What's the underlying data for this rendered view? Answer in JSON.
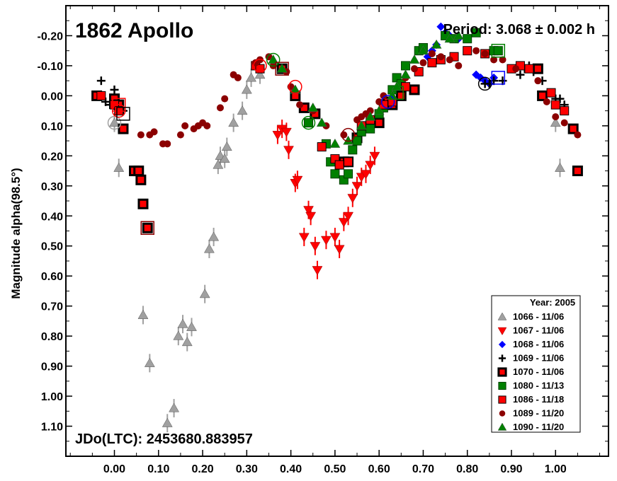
{
  "chart_data": {
    "type": "scatter",
    "title": "1862 Apollo",
    "period_text": "Period: 3.068 ± 0.002 h",
    "jd_text": "JDo(LTC): 2453680.883957",
    "ylabel": "Magnitude alpha(98.5°)",
    "xlabel": "",
    "xlim": [
      -0.11,
      1.12
    ],
    "ylim": [
      1.2,
      -0.3
    ],
    "y_inverted": true,
    "x_ticks": [
      0.0,
      0.1,
      0.2,
      0.3,
      0.4,
      0.5,
      0.6,
      0.7,
      0.8,
      0.9,
      1.0
    ],
    "x_tick_labels": [
      "0.00",
      "0.10",
      "0.20",
      "0.30",
      "0.40",
      "0.50",
      "0.60",
      "0.70",
      "0.80",
      "0.90",
      "1.00"
    ],
    "y_ticks": [
      -0.2,
      -0.1,
      0.0,
      0.1,
      0.2,
      0.3,
      0.4,
      0.5,
      0.6,
      0.7,
      0.8,
      0.9,
      1.0,
      1.1
    ],
    "y_tick_labels": [
      "-0.20",
      "-0.10",
      "0.00",
      "0.10",
      "0.20",
      "0.30",
      "0.40",
      "0.50",
      "0.60",
      "0.70",
      "0.80",
      "0.90",
      "1.00",
      "1.10"
    ],
    "legend_title": "Year: 2005",
    "legend_position": "bottom-right",
    "series": [
      {
        "name": "1066 - 11/06",
        "marker": "triangle-up",
        "color": "#a0a0a0",
        "error_bars": true,
        "points": [
          [
            0.0,
            0.09
          ],
          [
            0.01,
            0.24
          ],
          [
            0.065,
            0.73
          ],
          [
            0.08,
            0.89
          ],
          [
            0.12,
            1.09
          ],
          [
            0.135,
            1.04
          ],
          [
            0.145,
            0.8
          ],
          [
            0.155,
            0.76
          ],
          [
            0.165,
            0.82
          ],
          [
            0.175,
            0.77
          ],
          [
            0.205,
            0.66
          ],
          [
            0.215,
            0.51
          ],
          [
            0.225,
            0.47
          ],
          [
            0.235,
            0.23
          ],
          [
            0.24,
            0.2
          ],
          [
            0.25,
            0.21
          ],
          [
            0.255,
            0.17
          ],
          [
            0.27,
            0.09
          ],
          [
            0.29,
            0.05
          ],
          [
            0.3,
            -0.02
          ],
          [
            0.31,
            -0.06
          ],
          [
            0.33,
            -0.07
          ],
          [
            1.0,
            0.09
          ],
          [
            1.01,
            0.24
          ]
        ]
      },
      {
        "name": "1067 - 11/06",
        "marker": "triangle-down",
        "color": "#ff0000",
        "error_bars": true,
        "points": [
          [
            0.37,
            0.13
          ],
          [
            0.38,
            0.11
          ],
          [
            0.39,
            0.12
          ],
          [
            0.395,
            0.18
          ],
          [
            0.41,
            0.29
          ],
          [
            0.415,
            0.28
          ],
          [
            0.43,
            0.47
          ],
          [
            0.44,
            0.38
          ],
          [
            0.445,
            0.4
          ],
          [
            0.455,
            0.5
          ],
          [
            0.46,
            0.58
          ],
          [
            0.48,
            0.48
          ],
          [
            0.5,
            0.47
          ],
          [
            0.51,
            0.51
          ],
          [
            0.52,
            0.42
          ],
          [
            0.53,
            0.4
          ],
          [
            0.54,
            0.34
          ],
          [
            0.55,
            0.3
          ],
          [
            0.56,
            0.27
          ],
          [
            0.57,
            0.26
          ],
          [
            0.58,
            0.23
          ],
          [
            0.59,
            0.2
          ]
        ]
      },
      {
        "name": "1068 - 11/06",
        "marker": "diamond",
        "color": "#0000ff",
        "error_bars": false,
        "points": [
          [
            0.62,
            0.02
          ],
          [
            0.63,
            0.01
          ],
          [
            0.71,
            -0.13
          ],
          [
            0.72,
            -0.15
          ],
          [
            0.73,
            -0.17
          ],
          [
            0.74,
            -0.23
          ],
          [
            0.75,
            -0.21
          ],
          [
            0.76,
            -0.2
          ],
          [
            0.78,
            -0.19
          ],
          [
            0.82,
            -0.07
          ],
          [
            0.83,
            -0.06
          ],
          [
            0.84,
            -0.05
          ],
          [
            0.85,
            -0.04
          ],
          [
            0.86,
            -0.06
          ]
        ]
      },
      {
        "name": "1069 - 11/06",
        "marker": "plus",
        "color": "#000000",
        "error_bars": false,
        "points": [
          [
            -0.03,
            -0.05
          ],
          [
            -0.02,
            0.02
          ],
          [
            -0.01,
            0.03
          ],
          [
            0.0,
            -0.02
          ],
          [
            0.01,
            0.03
          ],
          [
            0.02,
            0.05
          ],
          [
            0.84,
            -0.04
          ],
          [
            0.85,
            -0.04
          ],
          [
            0.86,
            -0.05
          ],
          [
            0.88,
            -0.05
          ],
          [
            0.92,
            -0.07
          ],
          [
            0.93,
            -0.09
          ],
          [
            0.94,
            -0.1
          ],
          [
            0.95,
            -0.08
          ],
          [
            0.97,
            -0.05
          ],
          [
            1.0,
            0.01
          ],
          [
            1.01,
            0.01
          ],
          [
            1.02,
            0.03
          ]
        ]
      },
      {
        "name": "1070 - 11/06",
        "marker": "square-dark",
        "color": "#000000",
        "error_bars": false,
        "points": [
          [
            -0.04,
            0.0
          ],
          [
            0.0,
            0.01
          ],
          [
            0.01,
            0.03
          ],
          [
            0.02,
            0.11
          ],
          [
            0.045,
            0.25
          ],
          [
            0.055,
            0.25
          ],
          [
            0.06,
            0.28
          ],
          [
            0.065,
            0.36
          ],
          [
            0.075,
            0.44
          ],
          [
            0.38,
            -0.09
          ],
          [
            0.41,
            0.0
          ],
          [
            0.43,
            0.04
          ],
          [
            0.455,
            0.06
          ],
          [
            0.52,
            0.22
          ],
          [
            0.53,
            0.22
          ],
          [
            0.55,
            0.14
          ],
          [
            0.6,
            0.09
          ],
          [
            0.62,
            0.02
          ],
          [
            0.63,
            0.03
          ],
          [
            0.65,
            0.0
          ],
          [
            0.68,
            -0.02
          ],
          [
            0.96,
            -0.09
          ],
          [
            0.97,
            0.0
          ],
          [
            1.04,
            0.11
          ],
          [
            1.05,
            0.25
          ]
        ]
      },
      {
        "name": "1080 - 11/13",
        "marker": "square",
        "color": "#008000",
        "error_bars": false,
        "points": [
          [
            0.44,
            0.09
          ],
          [
            0.48,
            0.16
          ],
          [
            0.49,
            0.22
          ],
          [
            0.5,
            0.26
          ],
          [
            0.51,
            0.23
          ],
          [
            0.52,
            0.28
          ],
          [
            0.53,
            0.26
          ],
          [
            0.54,
            0.18
          ],
          [
            0.55,
            0.15
          ],
          [
            0.56,
            0.12
          ],
          [
            0.58,
            0.11
          ],
          [
            0.6,
            0.06
          ],
          [
            0.61,
            0.04
          ],
          [
            0.63,
            -0.02
          ],
          [
            0.64,
            -0.06
          ],
          [
            0.65,
            -0.04
          ],
          [
            0.66,
            -0.1
          ],
          [
            0.69,
            -0.15
          ],
          [
            0.7,
            -0.16
          ],
          [
            0.75,
            -0.2
          ],
          [
            0.77,
            -0.19
          ],
          [
            0.8,
            -0.19
          ],
          [
            0.82,
            -0.21
          ],
          [
            0.86,
            -0.15
          ],
          [
            0.87,
            -0.15
          ]
        ]
      },
      {
        "name": "1086 - 11/18",
        "marker": "square",
        "color": "#ff0000",
        "error_bars": false,
        "points": [
          [
            -0.03,
            0.0
          ],
          [
            0.0,
            0.03
          ],
          [
            0.01,
            0.05
          ],
          [
            0.32,
            -0.1
          ],
          [
            0.33,
            -0.09
          ],
          [
            0.47,
            0.17
          ],
          [
            0.5,
            0.21
          ],
          [
            0.51,
            0.23
          ],
          [
            0.53,
            0.22
          ],
          [
            0.56,
            0.1
          ],
          [
            0.58,
            0.08
          ],
          [
            0.61,
            0.03
          ],
          [
            0.63,
            0.02
          ],
          [
            0.66,
            -0.03
          ],
          [
            0.69,
            -0.08
          ],
          [
            0.72,
            -0.11
          ],
          [
            0.74,
            -0.12
          ],
          [
            0.77,
            -0.13
          ],
          [
            0.8,
            -0.15
          ],
          [
            0.84,
            -0.14
          ],
          [
            0.9,
            -0.09
          ],
          [
            0.92,
            -0.1
          ],
          [
            0.94,
            -0.09
          ],
          [
            0.99,
            -0.01
          ],
          [
            1.0,
            0.03
          ],
          [
            1.02,
            0.05
          ]
        ]
      },
      {
        "name": "1089 - 11/20",
        "marker": "circle",
        "color": "#8b0000",
        "error_bars": false,
        "points": [
          [
            0.06,
            0.13
          ],
          [
            0.08,
            0.13
          ],
          [
            0.09,
            0.12
          ],
          [
            0.11,
            0.16
          ],
          [
            0.12,
            0.16
          ],
          [
            0.15,
            0.13
          ],
          [
            0.16,
            0.1
          ],
          [
            0.18,
            0.11
          ],
          [
            0.19,
            0.1
          ],
          [
            0.2,
            0.09
          ],
          [
            0.21,
            0.1
          ],
          [
            0.24,
            0.04
          ],
          [
            0.25,
            0.01
          ],
          [
            0.27,
            -0.07
          ],
          [
            0.28,
            -0.06
          ],
          [
            0.32,
            -0.11
          ],
          [
            0.33,
            -0.12
          ],
          [
            0.35,
            -0.13
          ],
          [
            0.36,
            -0.1
          ],
          [
            0.39,
            -0.08
          ],
          [
            0.4,
            -0.03
          ],
          [
            0.42,
            0.03
          ],
          [
            0.45,
            0.05
          ],
          [
            0.48,
            0.1
          ],
          [
            0.52,
            0.13
          ],
          [
            0.55,
            0.08
          ],
          [
            0.56,
            0.07
          ],
          [
            0.57,
            0.06
          ],
          [
            0.58,
            0.05
          ],
          [
            0.6,
            0.02
          ],
          [
            0.61,
            0.0
          ],
          [
            0.66,
            -0.06
          ],
          [
            0.68,
            -0.09
          ],
          [
            0.7,
            -0.11
          ],
          [
            0.72,
            -0.14
          ],
          [
            0.74,
            -0.13
          ],
          [
            0.76,
            -0.12
          ],
          [
            0.78,
            -0.1
          ],
          [
            0.82,
            -0.15
          ],
          [
            0.84,
            -0.14
          ],
          [
            0.86,
            -0.12
          ],
          [
            0.88,
            -0.12
          ],
          [
            0.91,
            -0.09
          ],
          [
            0.96,
            -0.05
          ],
          [
            0.98,
            0.02
          ],
          [
            1.0,
            0.07
          ],
          [
            1.02,
            0.09
          ],
          [
            1.05,
            0.13
          ]
        ]
      },
      {
        "name": "1090 - 11/20",
        "marker": "triangle-up",
        "color": "#008000",
        "error_bars": false,
        "points": [
          [
            0.36,
            -0.12
          ],
          [
            0.38,
            -0.09
          ],
          [
            0.41,
            -0.02
          ],
          [
            0.45,
            0.04
          ],
          [
            0.47,
            0.09
          ],
          [
            0.5,
            0.16
          ],
          [
            0.53,
            0.15
          ],
          [
            0.56,
            0.1
          ],
          [
            0.58,
            0.07
          ],
          [
            0.6,
            0.05
          ],
          [
            0.63,
            0.0
          ],
          [
            0.64,
            -0.03
          ],
          [
            0.66,
            -0.07
          ],
          [
            0.68,
            -0.12
          ],
          [
            0.7,
            -0.15
          ],
          [
            0.73,
            -0.17
          ],
          [
            0.76,
            -0.19
          ],
          [
            0.78,
            -0.2
          ]
        ]
      }
    ],
    "ring_markers": [
      {
        "x": 0.0,
        "y": 0.09,
        "color": "#a0a0a0",
        "shape": "circle"
      },
      {
        "x": 0.01,
        "y": 0.03,
        "color": "#ff0000",
        "shape": "square"
      },
      {
        "x": 0.01,
        "y": 0.05,
        "color": "#ff0000",
        "shape": "circle"
      },
      {
        "x": 0.02,
        "y": 0.06,
        "color": "#000000",
        "shape": "square"
      },
      {
        "x": 0.075,
        "y": 0.44,
        "color": "#8b0000",
        "shape": "square"
      },
      {
        "x": 0.33,
        "y": -0.1,
        "color": "#ff0000",
        "shape": "circle"
      },
      {
        "x": 0.36,
        "y": -0.12,
        "color": "#008000",
        "shape": "circle"
      },
      {
        "x": 0.38,
        "y": -0.09,
        "color": "#8b0000",
        "shape": "square"
      },
      {
        "x": 0.41,
        "y": -0.03,
        "color": "#ff0000",
        "shape": "circle"
      },
      {
        "x": 0.44,
        "y": 0.09,
        "color": "#008000",
        "shape": "circle"
      },
      {
        "x": 0.53,
        "y": 0.13,
        "color": "#8b0000",
        "shape": "circle"
      },
      {
        "x": 0.62,
        "y": 0.02,
        "color": "#0000ff",
        "shape": "circle"
      },
      {
        "x": 0.64,
        "y": -0.01,
        "color": "#008000",
        "shape": "square"
      },
      {
        "x": 0.84,
        "y": -0.04,
        "color": "#000000",
        "shape": "circle"
      },
      {
        "x": 0.87,
        "y": -0.06,
        "color": "#0000ff",
        "shape": "square"
      },
      {
        "x": 0.87,
        "y": -0.15,
        "color": "#008000",
        "shape": "square"
      }
    ]
  }
}
